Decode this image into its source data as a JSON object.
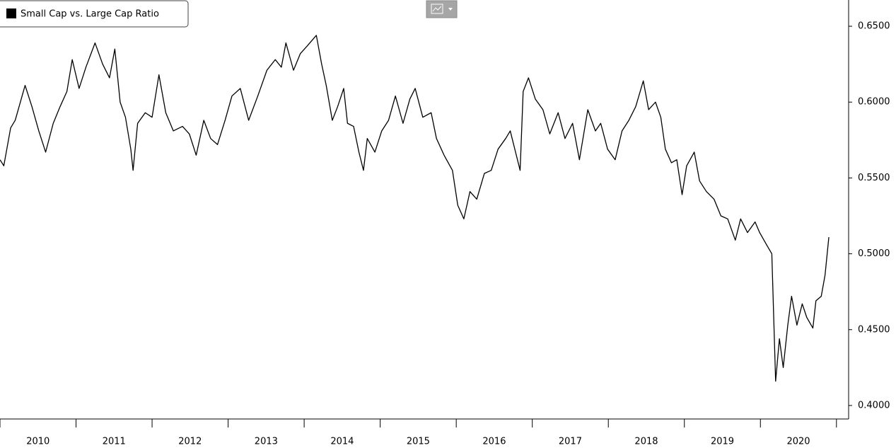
{
  "chart_data": {
    "type": "line",
    "legend": "Small Cap vs. Large Cap Ratio",
    "color": "#000000",
    "xlim": [
      2010,
      2021.16
    ],
    "ylim": [
      0.3911,
      0.6673
    ],
    "yticks": [
      {
        "value": 0.4,
        "label": "0.4000"
      },
      {
        "value": 0.45,
        "label": "0.4500"
      },
      {
        "value": 0.5,
        "label": "0.5000"
      },
      {
        "value": 0.55,
        "label": "0.5500"
      },
      {
        "value": 0.6,
        "label": "0.6000"
      },
      {
        "value": 0.65,
        "label": "0.6500"
      }
    ],
    "xticks": [
      {
        "value": 2010.5,
        "label": "2010"
      },
      {
        "value": 2011.5,
        "label": "2011"
      },
      {
        "value": 2012.5,
        "label": "2012"
      },
      {
        "value": 2013.5,
        "label": "2013"
      },
      {
        "value": 2014.5,
        "label": "2014"
      },
      {
        "value": 2015.5,
        "label": "2015"
      },
      {
        "value": 2016.5,
        "label": "2016"
      },
      {
        "value": 2017.5,
        "label": "2017"
      },
      {
        "value": 2018.5,
        "label": "2018"
      },
      {
        "value": 2019.5,
        "label": "2019"
      },
      {
        "value": 2020.5,
        "label": "2020"
      }
    ],
    "x": [
      2010.0,
      2010.05,
      2010.14,
      2010.2,
      2010.33,
      2010.42,
      2010.51,
      2010.6,
      2010.7,
      2010.79,
      2010.88,
      2010.95,
      2011.04,
      2011.13,
      2011.25,
      2011.35,
      2011.44,
      2011.51,
      2011.58,
      2011.65,
      2011.72,
      2011.75,
      2011.81,
      2011.91,
      2012.0,
      2012.09,
      2012.18,
      2012.28,
      2012.4,
      2012.49,
      2012.58,
      2012.68,
      2012.77,
      2012.86,
      2012.96,
      2013.05,
      2013.16,
      2013.27,
      2013.39,
      2013.51,
      2013.62,
      2013.7,
      2013.76,
      2013.86,
      2013.95,
      2014.04,
      2014.16,
      2014.23,
      2014.29,
      2014.37,
      2014.44,
      2014.52,
      2014.57,
      2014.65,
      2014.72,
      2014.78,
      2014.83,
      2014.93,
      2015.02,
      2015.11,
      2015.2,
      2015.3,
      2015.39,
      2015.46,
      2015.56,
      2015.67,
      2015.74,
      2015.84,
      2015.95,
      2016.02,
      2016.1,
      2016.18,
      2016.27,
      2016.37,
      2016.46,
      2016.55,
      2016.65,
      2016.71,
      2016.78,
      2016.84,
      2016.88,
      2016.95,
      2017.04,
      2017.14,
      2017.23,
      2017.34,
      2017.43,
      2017.53,
      2017.62,
      2017.73,
      2017.83,
      2017.9,
      2017.99,
      2018.09,
      2018.18,
      2018.27,
      2018.36,
      2018.46,
      2018.53,
      2018.62,
      2018.69,
      2018.75,
      2018.83,
      2018.9,
      2018.97,
      2019.03,
      2019.13,
      2019.2,
      2019.29,
      2019.39,
      2019.48,
      2019.57,
      2019.67,
      2019.74,
      2019.83,
      2019.93,
      2019.99,
      2020.08,
      2020.15,
      2020.2,
      2020.25,
      2020.3,
      2020.36,
      2020.41,
      2020.48,
      2020.55,
      2020.61,
      2020.69,
      2020.73,
      2020.8,
      2020.85,
      2020.9
    ],
    "values": [
      0.562,
      0.558,
      0.583,
      0.588,
      0.611,
      0.597,
      0.581,
      0.567,
      0.586,
      0.597,
      0.607,
      0.628,
      0.609,
      0.623,
      0.639,
      0.625,
      0.616,
      0.635,
      0.6,
      0.59,
      0.569,
      0.555,
      0.586,
      0.593,
      0.59,
      0.618,
      0.593,
      0.581,
      0.584,
      0.579,
      0.565,
      0.588,
      0.576,
      0.572,
      0.588,
      0.604,
      0.609,
      0.588,
      0.604,
      0.621,
      0.628,
      0.623,
      0.639,
      0.621,
      0.632,
      0.637,
      0.644,
      0.625,
      0.611,
      0.588,
      0.597,
      0.609,
      0.586,
      0.584,
      0.567,
      0.555,
      0.576,
      0.567,
      0.581,
      0.588,
      0.604,
      0.586,
      0.602,
      0.609,
      0.59,
      0.593,
      0.576,
      0.565,
      0.555,
      0.532,
      0.523,
      0.541,
      0.536,
      0.553,
      0.555,
      0.569,
      0.576,
      0.581,
      0.567,
      0.555,
      0.607,
      0.616,
      0.602,
      0.595,
      0.579,
      0.593,
      0.576,
      0.586,
      0.562,
      0.595,
      0.581,
      0.586,
      0.569,
      0.562,
      0.581,
      0.588,
      0.597,
      0.614,
      0.595,
      0.6,
      0.59,
      0.569,
      0.56,
      0.562,
      0.539,
      0.558,
      0.567,
      0.548,
      0.541,
      0.536,
      0.525,
      0.523,
      0.509,
      0.523,
      0.514,
      0.521,
      0.514,
      0.506,
      0.5,
      0.416,
      0.444,
      0.425,
      0.453,
      0.472,
      0.453,
      0.467,
      0.458,
      0.451,
      0.469,
      0.472,
      0.486,
      0.511
    ]
  }
}
